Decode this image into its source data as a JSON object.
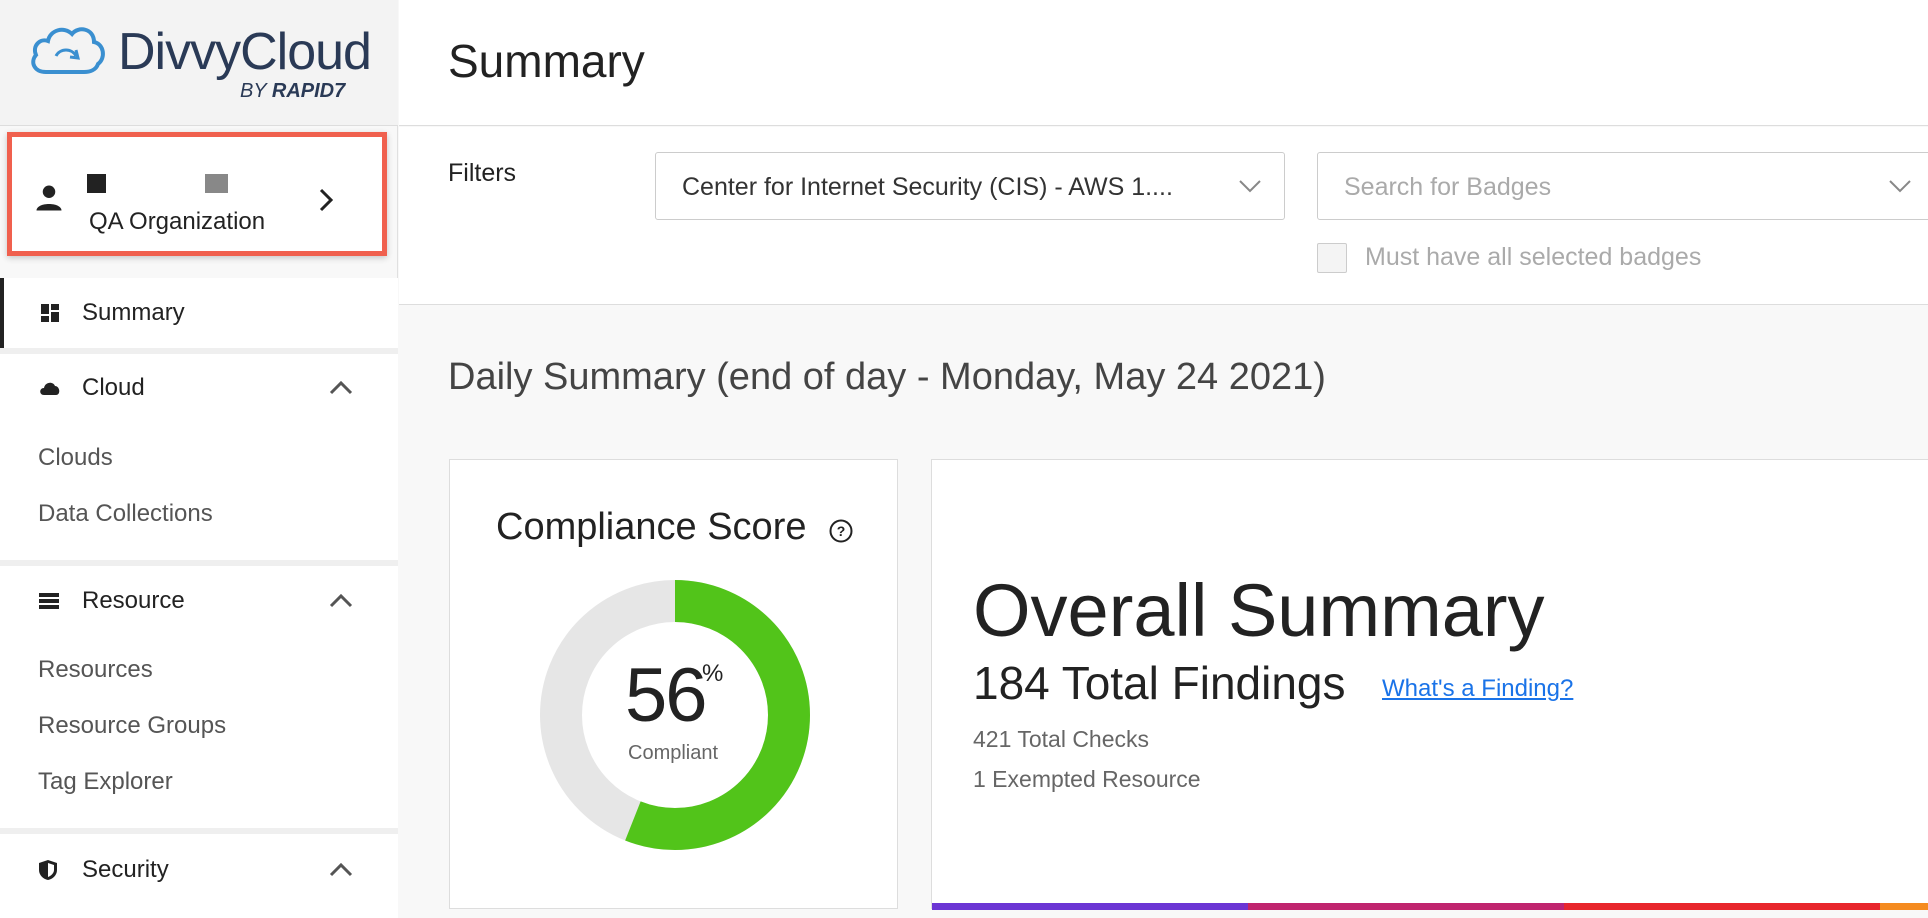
{
  "brand": {
    "name": "DivvyCloud",
    "by": "BY",
    "partner": "RAPID7"
  },
  "organization": {
    "name": "QA Organization"
  },
  "sidebar": {
    "summary": "Summary",
    "sections": [
      {
        "label": "Cloud",
        "items": [
          "Clouds",
          "Data Collections"
        ]
      },
      {
        "label": "Resource",
        "items": [
          "Resources",
          "Resource Groups",
          "Tag Explorer"
        ]
      },
      {
        "label": "Security",
        "items": []
      }
    ]
  },
  "header": {
    "title": "Summary"
  },
  "filters": {
    "label": "Filters",
    "pack_selected": "Center for Internet Security (CIS) - AWS 1....",
    "badge_search_placeholder": "Search for Badges",
    "must_have_all_label": "Must have all selected badges",
    "must_have_all_checked": false
  },
  "daily_summary": {
    "title": "Daily Summary (end of day - Monday, May 24 2021)"
  },
  "compliance": {
    "title": "Compliance Score",
    "percent": "56",
    "percent_sign": "%",
    "label": "Compliant",
    "fraction": 0.56,
    "color_good": "#52c41a",
    "color_rest": "#e6e6e6"
  },
  "overall": {
    "title": "Overall Summary",
    "findings": "184 Total Findings",
    "finding_link": "What's a Finding?",
    "checks": "421 Total Checks",
    "exempted": "1 Exempted Resource"
  },
  "severity_colors": [
    "#6b35d4",
    "#c0246e",
    "#e8262c",
    "#f58b1f"
  ]
}
